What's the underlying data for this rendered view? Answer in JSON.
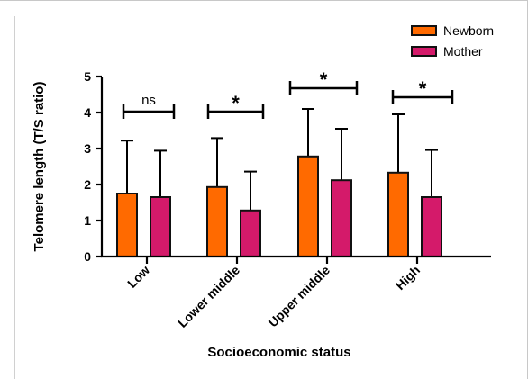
{
  "chart_data": {
    "type": "bar",
    "xlabel": "Socioeconomic status",
    "ylabel": "Telomere length (T/S ratio)",
    "ylim": [
      0,
      5
    ],
    "yticks": [
      "0",
      "1",
      "2",
      "3",
      "4",
      "5"
    ],
    "categories": [
      "Low",
      "Lower middle",
      "Upper middle",
      "High"
    ],
    "series": [
      {
        "name": "Newborn",
        "color": "#FF6A00",
        "values": [
          1.75,
          1.93,
          2.78,
          2.33
        ],
        "error": [
          1.47,
          1.36,
          1.32,
          1.62
        ]
      },
      {
        "name": "Mother",
        "color": "#D41A6A",
        "values": [
          1.65,
          1.28,
          2.12,
          1.65
        ],
        "error": [
          1.29,
          1.08,
          1.43,
          1.31
        ]
      }
    ],
    "significance": [
      "ns",
      "*",
      "*",
      "*"
    ],
    "legend_position": "top-right",
    "grid": false
  }
}
